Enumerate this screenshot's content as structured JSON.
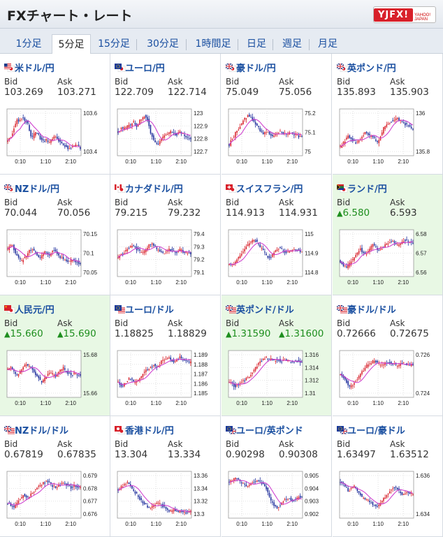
{
  "header": {
    "title": "FXチャート・レート",
    "logo_text": "YJFX!",
    "logo_sub": "YAHOO! JAPAN"
  },
  "tabs": [
    {
      "label": "1分足",
      "active": false
    },
    {
      "label": "5分足",
      "active": true
    },
    {
      "label": "15分足",
      "active": false
    },
    {
      "label": "30分足",
      "active": false
    },
    {
      "label": "1時間足",
      "active": false
    },
    {
      "label": "日足",
      "active": false
    },
    {
      "label": "週足",
      "active": false
    },
    {
      "label": "月足",
      "active": false
    }
  ],
  "labels": {
    "bid": "Bid",
    "ask": "Ask"
  },
  "time_ticks": [
    "0:10",
    "1:10",
    "2:10"
  ],
  "colors": {
    "up": "#1e8e1e",
    "link": "#1a4fa0",
    "highlight": "#e8f8e4",
    "candle_up": "#d8202a",
    "candle_down": "#1a2a9a",
    "ma": "#cc33cc"
  },
  "pairs": [
    {
      "name": "米ドル/円",
      "flag": "us-jp",
      "bid": "103.269",
      "ask": "103.271",
      "highlight": false,
      "bid_up": false,
      "ask_up": false,
      "y_ticks": [
        "103.6",
        "103.4"
      ],
      "trend": [
        0.3,
        0.35,
        0.4,
        0.5,
        0.6,
        0.72,
        0.8,
        0.78,
        0.82,
        0.85,
        0.83,
        0.8,
        0.75,
        0.7,
        0.55,
        0.4,
        0.38,
        0.45,
        0.5,
        0.48,
        0.42,
        0.35,
        0.3,
        0.28,
        0.3,
        0.32,
        0.27,
        0.25,
        0.3,
        0.35,
        0.38,
        0.4,
        0.36,
        0.3,
        0.25,
        0.22,
        0.2,
        0.18,
        0.15,
        0.12,
        0.1,
        0.12,
        0.15,
        0.18,
        0.2,
        0.18,
        0.15,
        0.12
      ]
    },
    {
      "name": "ユーロ/円",
      "flag": "eu-jp",
      "bid": "122.709",
      "ask": "122.714",
      "highlight": false,
      "bid_up": false,
      "ask_up": false,
      "y_ticks": [
        "123",
        "122.9",
        "122.8",
        "122.7"
      ],
      "trend": [
        0.5,
        0.55,
        0.6,
        0.58,
        0.62,
        0.6,
        0.65,
        0.7,
        0.68,
        0.72,
        0.75,
        0.7,
        0.66,
        0.7,
        0.78,
        0.82,
        0.85,
        0.9,
        0.88,
        0.8,
        0.65,
        0.5,
        0.4,
        0.3,
        0.25,
        0.2,
        0.22,
        0.28,
        0.35,
        0.4,
        0.42,
        0.45,
        0.48,
        0.5,
        0.52,
        0.5,
        0.48,
        0.46,
        0.45,
        0.47,
        0.5,
        0.48,
        0.45,
        0.43,
        0.4,
        0.38,
        0.36,
        0.35
      ]
    },
    {
      "name": "豪ドル/円",
      "flag": "au-jp",
      "bid": "75.049",
      "ask": "75.056",
      "highlight": false,
      "bid_up": false,
      "ask_up": false,
      "y_ticks": [
        "75.2",
        "75.1",
        "75"
      ],
      "trend": [
        0.2,
        0.3,
        0.35,
        0.4,
        0.5,
        0.55,
        0.6,
        0.65,
        0.7,
        0.78,
        0.82,
        0.85,
        0.9,
        0.88,
        0.86,
        0.8,
        0.75,
        0.7,
        0.65,
        0.6,
        0.55,
        0.5,
        0.48,
        0.5,
        0.52,
        0.5,
        0.45,
        0.42,
        0.4,
        0.42,
        0.45,
        0.48,
        0.5,
        0.52,
        0.5,
        0.47,
        0.45,
        0.43,
        0.45,
        0.48,
        0.5,
        0.48,
        0.46,
        0.44,
        0.42,
        0.4,
        0.38,
        0.4
      ]
    },
    {
      "name": "英ポンド/円",
      "flag": "gb-jp",
      "bid": "135.893",
      "ask": "135.903",
      "highlight": false,
      "bid_up": false,
      "ask_up": false,
      "y_ticks": [
        "136",
        "135.8"
      ],
      "trend": [
        0.15,
        0.2,
        0.25,
        0.3,
        0.35,
        0.4,
        0.38,
        0.35,
        0.3,
        0.28,
        0.25,
        0.28,
        0.3,
        0.35,
        0.4,
        0.45,
        0.5,
        0.48,
        0.45,
        0.42,
        0.4,
        0.38,
        0.35,
        0.3,
        0.25,
        0.3,
        0.4,
        0.5,
        0.6,
        0.65,
        0.7,
        0.72,
        0.75,
        0.78,
        0.8,
        0.82,
        0.85,
        0.83,
        0.8,
        0.78,
        0.75,
        0.72,
        0.7,
        0.68,
        0.65,
        0.62,
        0.6,
        0.58
      ]
    },
    {
      "name": "NZドル/円",
      "flag": "nz-jp",
      "bid": "70.044",
      "ask": "70.056",
      "highlight": false,
      "bid_up": false,
      "ask_up": false,
      "y_ticks": [
        "70.15",
        "70.1",
        "70.05"
      ],
      "trend": [
        0.6,
        0.65,
        0.7,
        0.68,
        0.6,
        0.5,
        0.45,
        0.4,
        0.35,
        0.3,
        0.35,
        0.4,
        0.45,
        0.5,
        0.55,
        0.6,
        0.58,
        0.55,
        0.5,
        0.45,
        0.42,
        0.4,
        0.45,
        0.5,
        0.55,
        0.52,
        0.48,
        0.45,
        0.5,
        0.55,
        0.58,
        0.55,
        0.5,
        0.45,
        0.4,
        0.38,
        0.35,
        0.32,
        0.3,
        0.28,
        0.3,
        0.33,
        0.35,
        0.33,
        0.3,
        0.28,
        0.26,
        0.25
      ]
    },
    {
      "name": "カナダドル/円",
      "flag": "ca-jp",
      "bid": "79.215",
      "ask": "79.232",
      "highlight": false,
      "bid_up": false,
      "ask_up": false,
      "y_ticks": [
        "79.4",
        "79.3",
        "79.2",
        "79.1"
      ],
      "trend": [
        0.4,
        0.45,
        0.5,
        0.48,
        0.52,
        0.55,
        0.6,
        0.62,
        0.65,
        0.7,
        0.68,
        0.65,
        0.6,
        0.58,
        0.55,
        0.5,
        0.52,
        0.55,
        0.6,
        0.65,
        0.7,
        0.72,
        0.75,
        0.7,
        0.65,
        0.6,
        0.58,
        0.55,
        0.52,
        0.5,
        0.52,
        0.55,
        0.58,
        0.6,
        0.58,
        0.55,
        0.52,
        0.5,
        0.52,
        0.55,
        0.58,
        0.56,
        0.54,
        0.52,
        0.5,
        0.52,
        0.5,
        0.48
      ]
    },
    {
      "name": "スイスフラン/円",
      "flag": "ch-jp",
      "bid": "114.913",
      "ask": "114.931",
      "highlight": false,
      "bid_up": false,
      "ask_up": false,
      "y_ticks": [
        "115",
        "114.9",
        "114.8"
      ],
      "trend": [
        0.25,
        0.2,
        0.22,
        0.25,
        0.3,
        0.35,
        0.4,
        0.45,
        0.5,
        0.55,
        0.6,
        0.65,
        0.7,
        0.75,
        0.78,
        0.8,
        0.82,
        0.8,
        0.75,
        0.7,
        0.65,
        0.6,
        0.55,
        0.5,
        0.45,
        0.4,
        0.38,
        0.4,
        0.45,
        0.5,
        0.55,
        0.6,
        0.62,
        0.6,
        0.58,
        0.55,
        0.52,
        0.5,
        0.52,
        0.55,
        0.58,
        0.6,
        0.62,
        0.6,
        0.58,
        0.56,
        0.55,
        0.54
      ]
    },
    {
      "name": "ランド/円",
      "flag": "za-jp",
      "bid": "6.580",
      "ask": "6.593",
      "highlight": true,
      "bid_up": true,
      "ask_up": false,
      "y_ticks": [
        "6.58",
        "6.57",
        "6.56"
      ],
      "trend": [
        0.3,
        0.25,
        0.2,
        0.18,
        0.15,
        0.2,
        0.25,
        0.3,
        0.35,
        0.4,
        0.45,
        0.5,
        0.55,
        0.6,
        0.55,
        0.5,
        0.48,
        0.5,
        0.55,
        0.6,
        0.65,
        0.7,
        0.68,
        0.65,
        0.6,
        0.58,
        0.6,
        0.62,
        0.65,
        0.7,
        0.72,
        0.75,
        0.78,
        0.8,
        0.78,
        0.75,
        0.72,
        0.7,
        0.72,
        0.75,
        0.78,
        0.8,
        0.82,
        0.8,
        0.78,
        0.76,
        0.75,
        0.74
      ]
    },
    {
      "name": "人民元/円",
      "flag": "cn-jp",
      "bid": "15.660",
      "ask": "15.690",
      "highlight": true,
      "bid_up": true,
      "ask_up": true,
      "y_ticks": [
        "15.68",
        "15.66"
      ],
      "trend": [
        0.6,
        0.62,
        0.65,
        0.6,
        0.55,
        0.5,
        0.45,
        0.5,
        0.55,
        0.6,
        0.65,
        0.7,
        0.75,
        0.72,
        0.68,
        0.65,
        0.6,
        0.55,
        0.5,
        0.45,
        0.4,
        0.35,
        0.3,
        0.35,
        0.4,
        0.45,
        0.5,
        0.55,
        0.52,
        0.5,
        0.48,
        0.45,
        0.5,
        0.55,
        0.6,
        0.62,
        0.65,
        0.6,
        0.55,
        0.52,
        0.5,
        0.48,
        0.5,
        0.52,
        0.5,
        0.48,
        0.47,
        0.46
      ]
    },
    {
      "name": "ユーロ/ドル",
      "flag": "eu-us",
      "bid": "1.18825",
      "ask": "1.18829",
      "highlight": false,
      "bid_up": false,
      "ask_up": false,
      "y_ticks": [
        "1.189",
        "1.188",
        "1.187",
        "1.186",
        "1.185"
      ],
      "trend": [
        0.3,
        0.25,
        0.2,
        0.22,
        0.25,
        0.3,
        0.35,
        0.4,
        0.38,
        0.35,
        0.3,
        0.28,
        0.3,
        0.35,
        0.4,
        0.45,
        0.5,
        0.55,
        0.6,
        0.62,
        0.65,
        0.68,
        0.7,
        0.72,
        0.7,
        0.68,
        0.7,
        0.75,
        0.8,
        0.82,
        0.85,
        0.88,
        0.9,
        0.88,
        0.85,
        0.82,
        0.8,
        0.82,
        0.85,
        0.88,
        0.9,
        0.88,
        0.86,
        0.84,
        0.82,
        0.8,
        0.78,
        0.8
      ]
    },
    {
      "name": "英ポンド/ドル",
      "flag": "gb-us",
      "bid": "1.31590",
      "ask": "1.31600",
      "highlight": true,
      "bid_up": true,
      "ask_up": true,
      "y_ticks": [
        "1.316",
        "1.314",
        "1.312",
        "1.31"
      ],
      "trend": [
        0.3,
        0.28,
        0.25,
        0.22,
        0.2,
        0.22,
        0.25,
        0.28,
        0.3,
        0.32,
        0.35,
        0.38,
        0.4,
        0.45,
        0.5,
        0.55,
        0.6,
        0.65,
        0.7,
        0.75,
        0.8,
        0.82,
        0.85,
        0.88,
        0.9,
        0.88,
        0.86,
        0.85,
        0.84,
        0.82,
        0.83,
        0.85,
        0.84,
        0.82,
        0.8,
        0.82,
        0.84,
        0.83,
        0.82,
        0.8,
        0.79,
        0.78,
        0.8,
        0.82,
        0.81,
        0.8,
        0.79,
        0.78
      ]
    },
    {
      "name": "豪ドル/ドル",
      "flag": "au-us",
      "bid": "0.72666",
      "ask": "0.72675",
      "highlight": false,
      "bid_up": false,
      "ask_up": false,
      "y_ticks": [
        "0.726",
        "0.724"
      ],
      "trend": [
        0.5,
        0.45,
        0.4,
        0.35,
        0.3,
        0.25,
        0.2,
        0.22,
        0.25,
        0.3,
        0.35,
        0.4,
        0.45,
        0.5,
        0.55,
        0.6,
        0.65,
        0.7,
        0.72,
        0.75,
        0.78,
        0.8,
        0.82,
        0.8,
        0.78,
        0.75,
        0.72,
        0.7,
        0.72,
        0.75,
        0.78,
        0.8,
        0.78,
        0.76,
        0.75,
        0.74,
        0.72,
        0.7,
        0.72,
        0.74,
        0.75,
        0.76,
        0.75,
        0.74,
        0.73,
        0.72,
        0.72,
        0.71
      ]
    },
    {
      "name": "NZドル/ドル",
      "flag": "nz-us",
      "bid": "0.67819",
      "ask": "0.67835",
      "highlight": false,
      "bid_up": false,
      "ask_up": false,
      "y_ticks": [
        "0.679",
        "0.678",
        "0.677",
        "0.676"
      ],
      "trend": [
        0.3,
        0.28,
        0.25,
        0.22,
        0.2,
        0.25,
        0.3,
        0.35,
        0.4,
        0.45,
        0.5,
        0.48,
        0.45,
        0.42,
        0.45,
        0.5,
        0.55,
        0.6,
        0.65,
        0.68,
        0.7,
        0.72,
        0.75,
        0.78,
        0.8,
        0.82,
        0.8,
        0.78,
        0.75,
        0.72,
        0.7,
        0.68,
        0.7,
        0.72,
        0.75,
        0.78,
        0.8,
        0.78,
        0.75,
        0.72,
        0.7,
        0.68,
        0.7,
        0.72,
        0.71,
        0.7,
        0.69,
        0.68
      ]
    },
    {
      "name": "香港ドル/円",
      "flag": "hk-jp",
      "bid": "13.304",
      "ask": "13.334",
      "highlight": false,
      "bid_up": false,
      "ask_up": false,
      "y_ticks": [
        "13.36",
        "13.34",
        "13.32",
        "13.3"
      ],
      "trend": [
        0.6,
        0.65,
        0.7,
        0.72,
        0.75,
        0.78,
        0.8,
        0.75,
        0.7,
        0.65,
        0.6,
        0.55,
        0.5,
        0.45,
        0.4,
        0.35,
        0.3,
        0.28,
        0.25,
        0.22,
        0.2,
        0.18,
        0.2,
        0.22,
        0.25,
        0.28,
        0.3,
        0.28,
        0.25,
        0.22,
        0.2,
        0.18,
        0.15,
        0.12,
        0.1,
        0.12,
        0.15,
        0.12,
        0.1,
        0.08,
        0.1,
        0.12,
        0.1,
        0.08,
        0.07,
        0.06,
        0.08,
        0.1
      ]
    },
    {
      "name": "ユーロ/英ポンド",
      "flag": "eu-gb",
      "bid": "0.90298",
      "ask": "0.90308",
      "highlight": false,
      "bid_up": false,
      "ask_up": false,
      "y_ticks": [
        "0.905",
        "0.904",
        "0.903",
        "0.902"
      ],
      "trend": [
        0.8,
        0.82,
        0.85,
        0.88,
        0.9,
        0.88,
        0.85,
        0.82,
        0.8,
        0.78,
        0.75,
        0.72,
        0.7,
        0.72,
        0.75,
        0.78,
        0.8,
        0.82,
        0.85,
        0.83,
        0.8,
        0.78,
        0.75,
        0.7,
        0.65,
        0.55,
        0.45,
        0.35,
        0.3,
        0.25,
        0.22,
        0.2,
        0.22,
        0.25,
        0.3,
        0.35,
        0.38,
        0.4,
        0.42,
        0.4,
        0.38,
        0.35,
        0.38,
        0.4,
        0.42,
        0.45,
        0.43,
        0.42
      ]
    },
    {
      "name": "ユーロ/豪ドル",
      "flag": "eu-au",
      "bid": "1.63497",
      "ask": "1.63512",
      "highlight": false,
      "bid_up": false,
      "ask_up": false,
      "y_ticks": [
        "1.636",
        "1.634"
      ],
      "trend": [
        0.8,
        0.78,
        0.75,
        0.7,
        0.65,
        0.6,
        0.62,
        0.65,
        0.68,
        0.7,
        0.65,
        0.6,
        0.55,
        0.5,
        0.45,
        0.42,
        0.4,
        0.38,
        0.35,
        0.32,
        0.3,
        0.28,
        0.25,
        0.22,
        0.2,
        0.25,
        0.3,
        0.35,
        0.4,
        0.45,
        0.5,
        0.55,
        0.6,
        0.62,
        0.65,
        0.68,
        0.7,
        0.65,
        0.6,
        0.55,
        0.5,
        0.52,
        0.55,
        0.58,
        0.56,
        0.54,
        0.52,
        0.5
      ]
    }
  ]
}
